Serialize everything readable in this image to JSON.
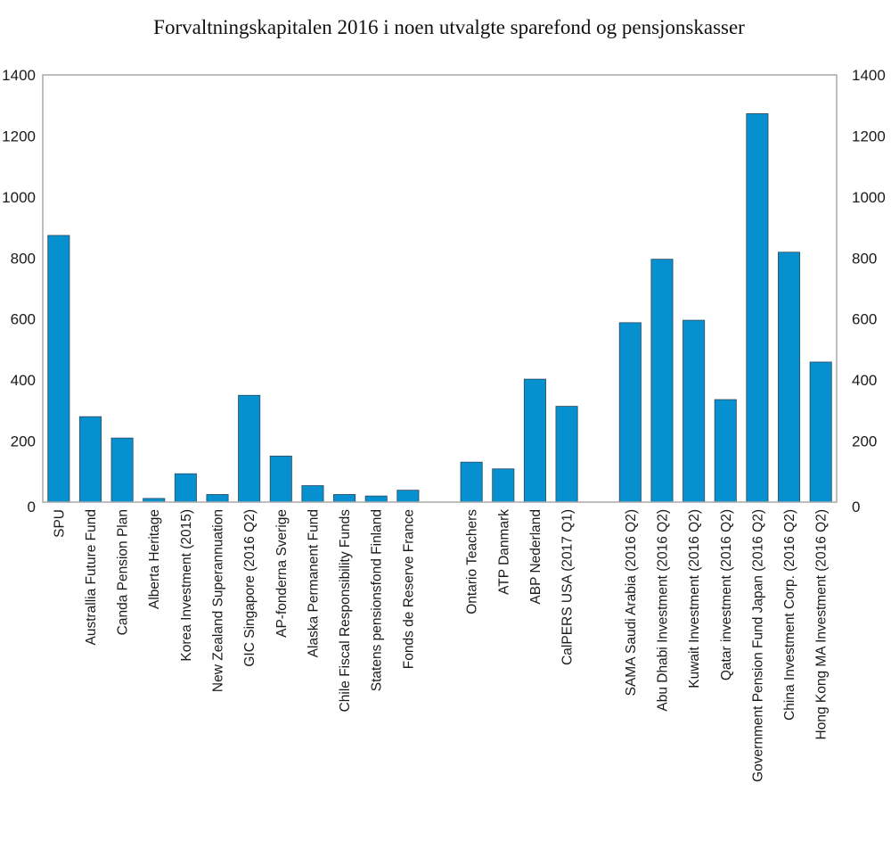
{
  "chart_data": {
    "type": "bar",
    "title": "Forvaltningskapitalen 2016 i noen utvalgte sparefond og pensjonskasser",
    "xlabel": "",
    "ylabel": "",
    "ylim": [
      0,
      1400
    ],
    "yticks": [
      0,
      200,
      400,
      600,
      800,
      1000,
      1200,
      1400
    ],
    "y_axis_mirrored_right": true,
    "grid": false,
    "legend": null,
    "bar_color": "#0790d0",
    "groups": [
      {
        "categories": [
          "SPU",
          "Australlia Future Fund",
          "Canda Pension Plan",
          "Alberta Heritage",
          "Korea Investment (2015)",
          "New Zealand Superannuation",
          "GIC Singapore (2016 Q2)",
          "AP-fonderna Sverige",
          "Alaska Permanent Fund",
          "Chile Fiscal Responsibility Funds",
          "Statens pensionsfond Finland",
          "Fonds de Reserve France"
        ],
        "values": [
          874,
          280,
          210,
          12,
          93,
          25,
          350,
          151,
          54,
          25,
          20,
          39
        ]
      },
      {
        "categories": [
          "Ontario Teachers",
          "ATP Danmark",
          "ABP Nederland",
          "CalPERS USA (2017 Q1)"
        ],
        "values": [
          131,
          109,
          403,
          314
        ]
      },
      {
        "categories": [
          "SAMA Saudi Arabia (2016 Q2)",
          "Abu Dhabi Investment (2016 Q2)",
          "Kuwait Investment (2016 Q2)",
          "Qatar investment (2016 Q2)",
          "Government Pension Fund Japan (2016 Q2)",
          "China Investment Corp. (2016 Q2)",
          "Hong Kong MA Investment (2016 Q2)"
        ],
        "values": [
          588,
          796,
          596,
          336,
          1273,
          819,
          459
        ]
      }
    ]
  }
}
